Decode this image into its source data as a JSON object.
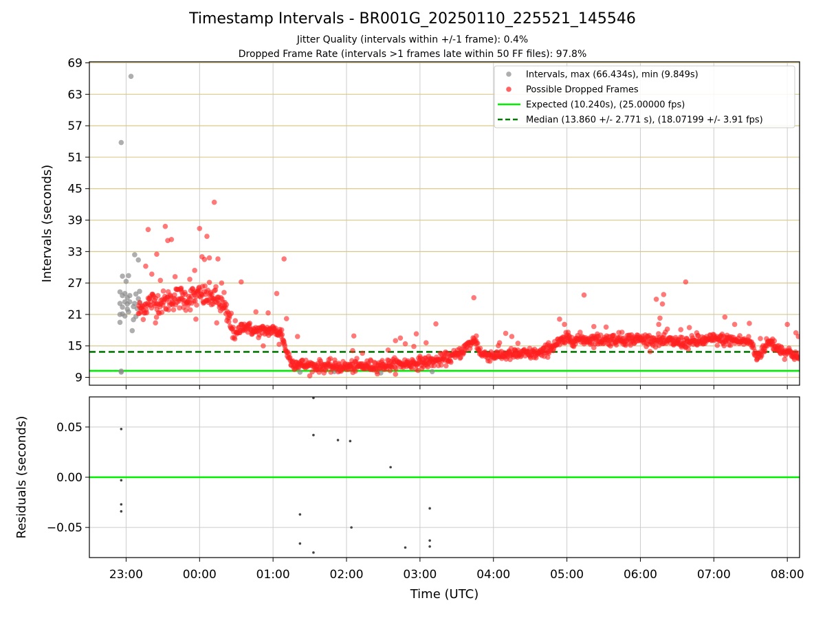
{
  "chart_data": [
    {
      "type": "scatter",
      "title": "Timestamp Intervals - BR001G_20250110_225521_145546",
      "subtitle_lines": [
        "Jitter Quality (intervals within +/-1 frame): 0.4%",
        "Dropped Frame Rate (intervals >1 frames late within 50 FF files): 97.8%"
      ],
      "xlabel": "",
      "ylabel": "Intervals (seconds)",
      "x_axis": {
        "type": "time",
        "start": "22:30",
        "end": "08:10",
        "tick_labels": [
          "23:00",
          "00:00",
          "01:00",
          "02:00",
          "03:00",
          "04:00",
          "05:00",
          "06:00",
          "07:00",
          "08:00"
        ]
      },
      "ylim": [
        7.5,
        69.2
      ],
      "yticks": [
        9,
        15,
        21,
        27,
        33,
        39,
        45,
        51,
        57,
        63,
        69
      ],
      "grid": true,
      "legend": {
        "placement": "top-right",
        "entries": [
          {
            "label": "Intervals, max (66.434s), min (9.849s)",
            "color": "#8c8c8c",
            "marker": "circle"
          },
          {
            "label": "Possible Dropped Frames",
            "color": "#ff2020",
            "marker": "circle"
          },
          {
            "label": "Expected (10.240s), (25.00000 fps)",
            "color": "#00ee00",
            "marker": "line"
          },
          {
            "label": "Median (13.860 +/- 2.771 s), (18.07199 +/- 3.91 fps)",
            "color": "#007a00",
            "marker": "dashed-line"
          }
        ]
      },
      "reference_lines": [
        {
          "name": "Expected (10.240s), (25.00000 fps)",
          "y": 10.24,
          "color": "#00ee00",
          "style": "solid"
        },
        {
          "name": "Median (13.860 +/- 2.771 s), (18.07199 +/- 3.91 fps)",
          "y": 13.86,
          "color": "#007a00",
          "style": "dashed"
        }
      ],
      "series": [
        {
          "name": "Intervals, max (66.434s), min (9.849s)",
          "color": "#8c8c8c",
          "points": [
            [
              "22:55",
              23.1
            ],
            [
              "22:55",
              25.3
            ],
            [
              "22:55",
              21.0
            ],
            [
              "22:55",
              19.5
            ],
            [
              "22:56",
              53.8
            ],
            [
              "22:56",
              10.2
            ],
            [
              "22:56",
              10.0
            ],
            [
              "22:57",
              28.3
            ],
            [
              "22:57",
              22.4
            ],
            [
              "22:57",
              21.1
            ],
            [
              "22:57",
              24.6
            ],
            [
              "22:59",
              25.0
            ],
            [
              "22:59",
              23.4
            ],
            [
              "22:59",
              20.7
            ],
            [
              "23:00",
              27.3
            ],
            [
              "23:01",
              24.2
            ],
            [
              "23:01",
              23.0
            ],
            [
              "23:01",
              22.0
            ],
            [
              "23:02",
              28.4
            ],
            [
              "23:02",
              21.5
            ],
            [
              "23:03",
              24.6
            ],
            [
              "23:03",
              23.4
            ],
            [
              "23:04",
              66.43
            ],
            [
              "23:05",
              17.9
            ],
            [
              "23:06",
              22.5
            ],
            [
              "23:06",
              20.0
            ],
            [
              "23:07",
              32.4
            ],
            [
              "23:07",
              23.1
            ],
            [
              "23:08",
              24.9
            ],
            [
              "23:08",
              20.6
            ],
            [
              "23:09",
              22.1
            ],
            [
              "23:10",
              31.4
            ],
            [
              "23:10",
              24.0
            ],
            [
              "23:11",
              25.4
            ],
            [
              "23:11",
              23.2
            ],
            [
              "01:22",
              10.0
            ],
            [
              "01:50",
              10.1
            ],
            [
              "02:28",
              9.85
            ],
            [
              "03:10",
              10.1
            ]
          ]
        },
        {
          "name": "Possible Dropped Frames",
          "color": "#ff2020",
          "trend": [
            [
              "23:10",
              21.5
            ],
            [
              "23:20",
              23.5
            ],
            [
              "23:30",
              23.2
            ],
            [
              "23:40",
              24.2
            ],
            [
              "23:50",
              24.0
            ],
            [
              "00:00",
              24.6
            ],
            [
              "00:10",
              24.3
            ],
            [
              "00:15",
              23.8
            ],
            [
              "00:20",
              22.0
            ],
            [
              "00:25",
              19.5
            ],
            [
              "00:30",
              17.0
            ],
            [
              "00:35",
              19.0
            ],
            [
              "00:45",
              17.8
            ],
            [
              "01:00",
              18.0
            ],
            [
              "01:07",
              17.4
            ],
            [
              "01:10",
              14.5
            ],
            [
              "01:15",
              11.8
            ],
            [
              "01:30",
              11.2
            ],
            [
              "02:00",
              11.0
            ],
            [
              "02:30",
              11.3
            ],
            [
              "03:00",
              11.8
            ],
            [
              "03:15",
              12.2
            ],
            [
              "03:30",
              13.2
            ],
            [
              "03:40",
              15.2
            ],
            [
              "03:45",
              16.2
            ],
            [
              "03:50",
              13.4
            ],
            [
              "04:00",
              13.2
            ],
            [
              "04:20",
              13.4
            ],
            [
              "04:40",
              13.6
            ],
            [
              "04:50",
              15.2
            ],
            [
              "05:00",
              16.3
            ],
            [
              "05:30",
              16.2
            ],
            [
              "06:00",
              16.3
            ],
            [
              "06:20",
              15.9
            ],
            [
              "06:40",
              15.6
            ],
            [
              "07:00",
              16.3
            ],
            [
              "07:20",
              16.0
            ],
            [
              "07:30",
              15.8
            ],
            [
              "07:35",
              12.8
            ],
            [
              "07:45",
              15.8
            ],
            [
              "07:55",
              14.2
            ],
            [
              "08:05",
              13.5
            ],
            [
              "08:10",
              12.5
            ]
          ],
          "outliers": [
            [
              "23:18",
              37.2
            ],
            [
              "23:16",
              30.2
            ],
            [
              "23:21",
              28.7
            ],
            [
              "23:25",
              32.5
            ],
            [
              "23:24",
              19.4
            ],
            [
              "23:28",
              27.5
            ],
            [
              "23:32",
              37.8
            ],
            [
              "23:34",
              35.1
            ],
            [
              "23:37",
              35.3
            ],
            [
              "23:40",
              28.2
            ],
            [
              "23:45",
              26.0
            ],
            [
              "23:52",
              27.7
            ],
            [
              "23:56",
              29.4
            ],
            [
              "23:57",
              20.1
            ],
            [
              "00:00",
              37.4
            ],
            [
              "00:02",
              32.0
            ],
            [
              "00:04",
              31.5
            ],
            [
              "00:06",
              35.9
            ],
            [
              "00:08",
              31.8
            ],
            [
              "00:10",
              24.8
            ],
            [
              "00:12",
              42.4
            ],
            [
              "00:15",
              31.6
            ],
            [
              "00:14",
              19.4
            ],
            [
              "00:18",
              27.0
            ],
            [
              "00:20",
              25.2
            ],
            [
              "00:34",
              27.2
            ],
            [
              "00:46",
              21.5
            ],
            [
              "00:52",
              15.0
            ],
            [
              "00:56",
              21.3
            ],
            [
              "01:03",
              25.0
            ],
            [
              "01:05",
              15.3
            ],
            [
              "01:09",
              31.6
            ],
            [
              "01:11",
              20.2
            ],
            [
              "01:20",
              16.8
            ],
            [
              "02:06",
              16.9
            ],
            [
              "02:05",
              14.1
            ],
            [
              "02:13",
              13.6
            ],
            [
              "02:34",
              14.2
            ],
            [
              "02:40",
              16.0
            ],
            [
              "02:44",
              16.5
            ],
            [
              "02:48",
              15.4
            ],
            [
              "02:55",
              14.9
            ],
            [
              "02:57",
              17.3
            ],
            [
              "03:13",
              19.2
            ],
            [
              "03:05",
              15.6
            ],
            [
              "03:44",
              24.2
            ],
            [
              "03:46",
              16.9
            ],
            [
              "04:05",
              15.6
            ],
            [
              "04:10",
              17.4
            ],
            [
              "04:15",
              16.8
            ],
            [
              "04:20",
              15.5
            ],
            [
              "04:28",
              14.0
            ],
            [
              "04:40",
              13.9
            ],
            [
              "04:45",
              15.6
            ],
            [
              "04:54",
              20.1
            ],
            [
              "04:58",
              19.1
            ],
            [
              "05:01",
              17.6
            ],
            [
              "05:07",
              15.4
            ],
            [
              "05:14",
              24.7
            ],
            [
              "05:22",
              18.7
            ],
            [
              "05:32",
              18.6
            ],
            [
              "05:45",
              17.6
            ],
            [
              "06:00",
              16.2
            ],
            [
              "06:13",
              23.9
            ],
            [
              "06:15",
              19.1
            ],
            [
              "06:16",
              20.3
            ],
            [
              "06:18",
              23.0
            ],
            [
              "06:19",
              24.8
            ],
            [
              "06:22",
              18.2
            ],
            [
              "06:33",
              18.1
            ],
            [
              "06:37",
              27.2
            ],
            [
              "06:40",
              18.5
            ],
            [
              "06:46",
              17.5
            ],
            [
              "06:53",
              16.0
            ],
            [
              "07:09",
              20.5
            ],
            [
              "07:17",
              19.1
            ],
            [
              "07:29",
              19.3
            ],
            [
              "07:38",
              16.4
            ],
            [
              "07:48",
              16.3
            ],
            [
              "08:00",
              19.1
            ],
            [
              "08:07",
              17.5
            ],
            [
              "08:09",
              16.8
            ]
          ]
        }
      ]
    },
    {
      "type": "scatter",
      "title": "",
      "xlabel": "Time (UTC)",
      "ylabel": "Residuals (seconds)",
      "x_axis": {
        "type": "time",
        "start": "22:30",
        "end": "08:10",
        "tick_labels": [
          "23:00",
          "00:00",
          "01:00",
          "02:00",
          "03:00",
          "04:00",
          "05:00",
          "06:00",
          "07:00",
          "08:00"
        ]
      },
      "ylim": [
        -0.08,
        0.08
      ],
      "ytick_labels": [
        "−0.05",
        "0.00",
        "0.05"
      ],
      "yticks": [
        -0.05,
        0.0,
        0.05
      ],
      "grid": true,
      "reference_lines": [
        {
          "y": 0.0,
          "color": "#00ee00",
          "style": "solid"
        }
      ],
      "series": [
        {
          "name": "",
          "color": "#444444",
          "points": [
            [
              "22:56",
              0.048
            ],
            [
              "22:56",
              -0.003
            ],
            [
              "22:56",
              -0.027
            ],
            [
              "22:56",
              -0.034
            ],
            [
              "01:22",
              -0.037
            ],
            [
              "01:22",
              -0.066
            ],
            [
              "01:33",
              0.079
            ],
            [
              "01:33",
              0.042
            ],
            [
              "01:33",
              -0.075
            ],
            [
              "01:53",
              0.037
            ],
            [
              "02:03",
              0.036
            ],
            [
              "02:04",
              -0.05
            ],
            [
              "02:36",
              0.01
            ],
            [
              "02:48",
              -0.07
            ],
            [
              "03:08",
              -0.031
            ],
            [
              "03:08",
              -0.063
            ],
            [
              "03:08",
              -0.069
            ]
          ]
        }
      ]
    }
  ]
}
